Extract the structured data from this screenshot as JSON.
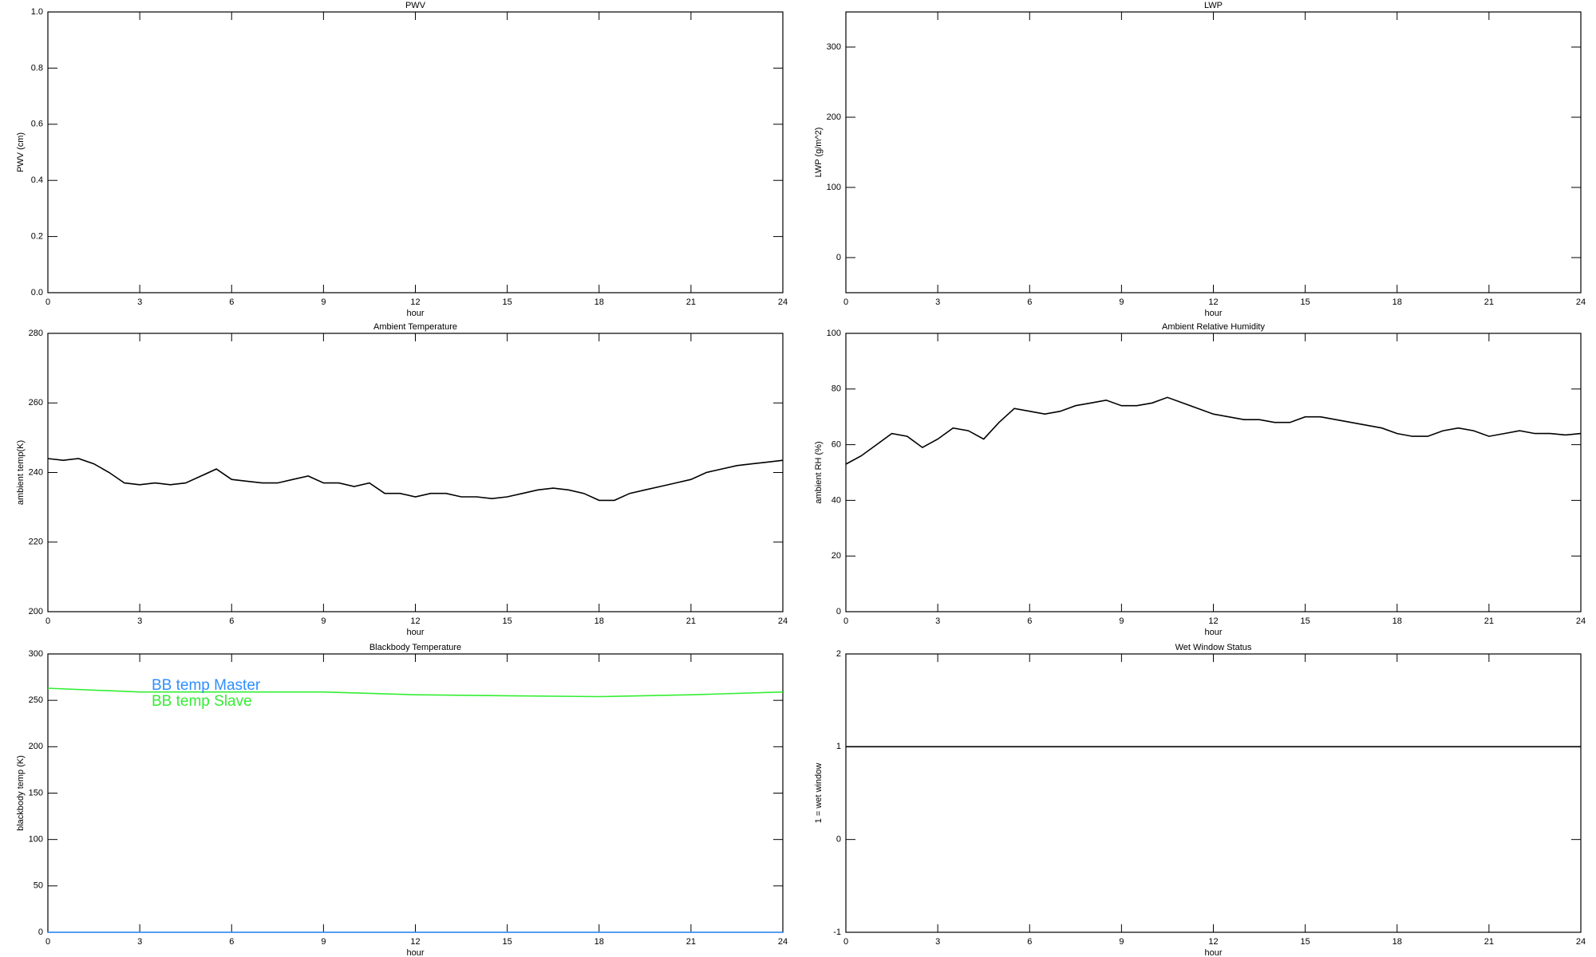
{
  "chart_data": [
    {
      "type": "line",
      "title": "PWV",
      "xlabel": "hour",
      "ylabel": "PWV (cm)",
      "xlim": [
        0,
        24
      ],
      "xticks": [
        0,
        3,
        6,
        9,
        12,
        15,
        18,
        21,
        24
      ],
      "ylim": [
        0,
        1
      ],
      "yticks": [
        {
          "value": 0,
          "label": "0.0"
        },
        0.2,
        0.4,
        0.6,
        0.8,
        {
          "value": 1,
          "label": "1.0"
        }
      ]
    },
    {
      "type": "line",
      "title": "LWP",
      "xlabel": "hour",
      "ylabel": "LWP (g/m^2)",
      "xlim": [
        0,
        24
      ],
      "xticks": [
        0,
        3,
        6,
        9,
        12,
        15,
        18,
        21,
        24
      ],
      "ylim": [
        -50,
        350
      ],
      "yticks": [
        0,
        100,
        200,
        300
      ]
    },
    {
      "type": "line",
      "title": "Ambient Temperature",
      "xlabel": "hour",
      "ylabel": "ambient temp(K)",
      "xlim": [
        0,
        24
      ],
      "xticks": [
        0,
        3,
        6,
        9,
        12,
        15,
        18,
        21,
        24
      ],
      "ylim": [
        200,
        280
      ],
      "yticks": [
        200,
        220,
        240,
        260,
        280
      ],
      "color": "#000000",
      "x": [
        0,
        0.5,
        1,
        1.5,
        2,
        2.5,
        3,
        3.5,
        4,
        4.5,
        5,
        5.5,
        6,
        6.5,
        7,
        7.5,
        8,
        8.5,
        9,
        9.5,
        10,
        10.5,
        11,
        11.5,
        12,
        12.5,
        13,
        13.5,
        14,
        14.5,
        15,
        15.5,
        16,
        16.5,
        17,
        17.5,
        18,
        18.5,
        19,
        19.5,
        20,
        20.5,
        21,
        21.5,
        22,
        22.5,
        23,
        23.5,
        24
      ],
      "values": [
        244,
        243.5,
        244,
        242.5,
        240,
        237,
        236.5,
        237,
        236.5,
        237,
        239,
        241,
        238,
        237.5,
        237,
        237,
        238,
        239,
        237,
        237,
        236,
        237,
        234,
        234,
        233,
        234,
        234,
        233,
        233,
        232.5,
        233,
        234,
        235,
        235.5,
        235,
        234,
        232,
        232,
        234,
        235,
        236,
        237,
        238,
        240,
        241,
        242,
        242.5,
        243,
        243.5
      ]
    },
    {
      "type": "line",
      "title": "Ambient Relative Humidity",
      "xlabel": "hour",
      "ylabel": "ambient RH (%)",
      "xlim": [
        0,
        24
      ],
      "xticks": [
        0,
        3,
        6,
        9,
        12,
        15,
        18,
        21,
        24
      ],
      "ylim": [
        0,
        100
      ],
      "yticks": [
        0,
        20,
        40,
        60,
        80,
        100
      ],
      "color": "#000000",
      "x": [
        0,
        0.5,
        1,
        1.5,
        2,
        2.5,
        3,
        3.5,
        4,
        4.5,
        5,
        5.5,
        6,
        6.5,
        7,
        7.5,
        8,
        8.5,
        9,
        9.5,
        10,
        10.5,
        11,
        11.5,
        12,
        12.5,
        13,
        13.5,
        14,
        14.5,
        15,
        15.5,
        16,
        16.5,
        17,
        17.5,
        18,
        18.5,
        19,
        19.5,
        20,
        20.5,
        21,
        21.5,
        22,
        22.5,
        23,
        23.5,
        24
      ],
      "values": [
        53,
        56,
        60,
        64,
        63,
        59,
        62,
        66,
        65,
        62,
        68,
        73,
        72,
        71,
        72,
        74,
        75,
        76,
        74,
        74,
        75,
        77,
        75,
        73,
        71,
        70,
        69,
        69,
        68,
        68,
        70,
        70,
        69,
        68,
        67,
        66,
        64,
        63,
        63,
        65,
        66,
        65,
        63,
        64,
        65,
        64,
        64,
        63.5,
        64
      ]
    },
    {
      "type": "line",
      "title": "Blackbody Temperature",
      "xlabel": "hour",
      "ylabel": "blackbody temp (K)",
      "xlim": [
        0,
        24
      ],
      "xticks": [
        0,
        3,
        6,
        9,
        12,
        15,
        18,
        21,
        24
      ],
      "ylim": [
        0,
        300
      ],
      "yticks": [
        0,
        50,
        100,
        150,
        200,
        250,
        300
      ],
      "legend": "upper left",
      "x": [
        0,
        3,
        6,
        9,
        12,
        15,
        18,
        21,
        24
      ],
      "series": [
        {
          "name": "BB temp Master",
          "color": "#2f8fff",
          "values": [
            0,
            0,
            0,
            0,
            0,
            0,
            0,
            0,
            0
          ]
        },
        {
          "name": "BB temp Slave",
          "color": "#33ee33",
          "values": [
            263,
            259,
            259,
            259,
            256,
            255,
            254,
            256,
            259
          ]
        }
      ]
    },
    {
      "type": "line",
      "title": "Wet Window Status",
      "xlabel": "hour",
      "ylabel": "1 = wet window",
      "xlim": [
        0,
        24
      ],
      "xticks": [
        0,
        3,
        6,
        9,
        12,
        15,
        18,
        21,
        24
      ],
      "ylim": [
        -1,
        2
      ],
      "yticks": [
        -1,
        0,
        1,
        2
      ],
      "color": "#000000",
      "x": [
        0,
        24
      ],
      "values": [
        1,
        1
      ]
    }
  ]
}
